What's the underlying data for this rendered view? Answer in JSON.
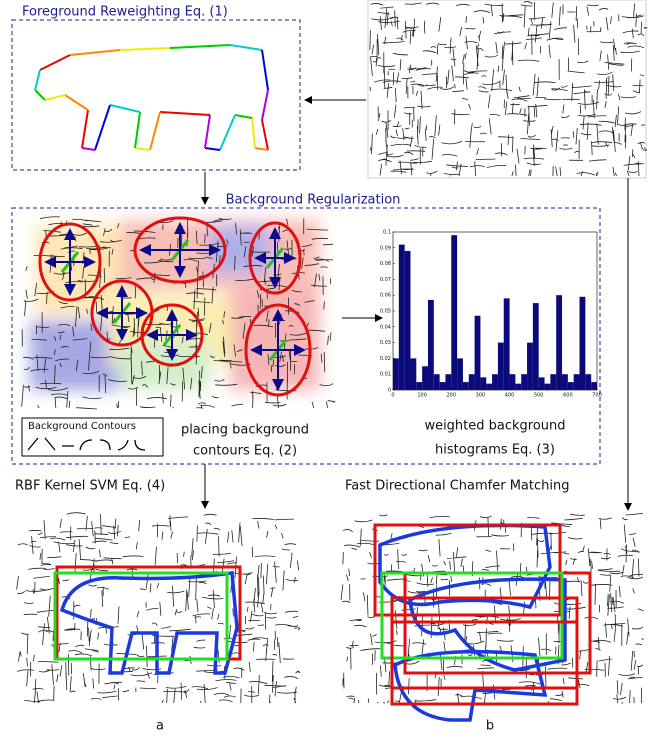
{
  "labels": {
    "foreground": "Foreground Reweighting Eq. (1)",
    "background": "Background Regularization",
    "contours_legend": "Background Contours",
    "placing": [
      "placing background",
      "contours Eq. (2)"
    ],
    "weighted": [
      "weighted background",
      "histograms Eq. (3)"
    ],
    "svm": "RBF Kernel SVM Eq. (4)",
    "chamfer": "Fast Directional Chamfer Matching",
    "panel_a": "a",
    "panel_b": "b"
  },
  "chart_data": {
    "type": "histogram",
    "color": "#0a0a7a",
    "bins": [
      0,
      20,
      40,
      60,
      80,
      100,
      120,
      140,
      160,
      180,
      200,
      220,
      240,
      260,
      280,
      300,
      320,
      340,
      360,
      380,
      400,
      420,
      440,
      460,
      480,
      500,
      520,
      540,
      560,
      580,
      600,
      620,
      640,
      660,
      680,
      700
    ],
    "values": [
      0.02,
      0.092,
      0.088,
      0.02,
      0.005,
      0.015,
      0.057,
      0.01,
      0.005,
      0.01,
      0.098,
      0.02,
      0.005,
      0.01,
      0.047,
      0.008,
      0.004,
      0.01,
      0.03,
      0.058,
      0.01,
      0.004,
      0.01,
      0.03,
      0.055,
      0.008,
      0.004,
      0.01,
      0.06,
      0.01,
      0.005,
      0.01,
      0.059,
      0.01,
      0.005
    ],
    "xlim": [
      0,
      700
    ],
    "ylim": [
      0,
      0.1
    ],
    "xticks": [
      0,
      100,
      200,
      300,
      400,
      500,
      600,
      700
    ],
    "yticks": [
      0,
      0.01,
      0.02,
      0.03,
      0.04,
      0.05,
      0.06,
      0.07,
      0.08,
      0.09,
      0.1
    ]
  }
}
